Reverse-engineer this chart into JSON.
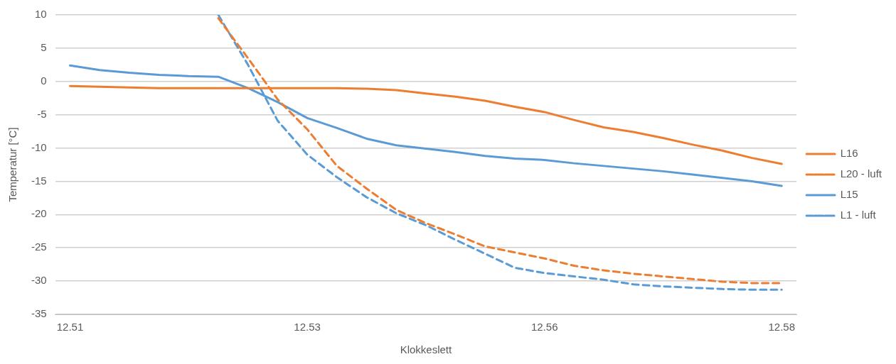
{
  "chart_data": {
    "type": "line",
    "xlabel": "Klokkeslett",
    "ylabel": "Temperatur [°C]",
    "categories": [
      "12.51",
      null,
      null,
      null,
      null,
      null,
      null,
      null,
      "12.53",
      null,
      null,
      null,
      null,
      null,
      null,
      null,
      "12.56",
      null,
      null,
      null,
      null,
      null,
      null,
      null,
      "12.58"
    ],
    "ylim": [
      -35,
      10
    ],
    "yticks": [
      -35,
      -30,
      -25,
      -20,
      -15,
      -10,
      -5,
      0,
      5,
      10
    ],
    "grid": "y",
    "legend": "right",
    "marker": "none",
    "series": [
      {
        "name": "L16",
        "color": "#ed7d31",
        "line_style": "solid",
        "values": [
          -0.7,
          -0.8,
          -0.9,
          -1,
          -1,
          -1,
          -1,
          -1,
          -1,
          -1,
          -1.1,
          -1.3,
          -1.8,
          -2.3,
          -2.9,
          -3.8,
          -4.6,
          -5.8,
          -6.9,
          -7.6,
          -8.5,
          -9.5,
          -10.4,
          -11.5,
          -12.4
        ]
      },
      {
        "name": "L20 - luft",
        "color": "#ed7d31",
        "line_style": "dashed",
        "values": [
          null,
          null,
          null,
          null,
          null,
          9.5,
          3.5,
          -2.7,
          -7.2,
          -12.7,
          -16.1,
          -19.3,
          -21.3,
          -23,
          -24.8,
          -25.7,
          -26.6,
          -27.7,
          -28.4,
          -28.9,
          -29.3,
          -29.7,
          -30.1,
          -30.3,
          -30.3
        ]
      },
      {
        "name": "L15",
        "color": "#5b9bd5",
        "line_style": "solid",
        "values": [
          2.4,
          1.7,
          1.3,
          1,
          0.8,
          0.7,
          -1,
          -3.1,
          -5.5,
          -7,
          -8.6,
          -9.6,
          -10.1,
          -10.6,
          -11.2,
          -11.6,
          -11.8,
          -12.3,
          -12.7,
          -13.1,
          -13.5,
          -14,
          -14.5,
          -15,
          -15.7
        ]
      },
      {
        "name": "L1 - luft",
        "color": "#5b9bd5",
        "line_style": "dashed",
        "values": [
          null,
          null,
          null,
          null,
          null,
          10,
          2.5,
          -5.9,
          -11,
          -14.4,
          -17.4,
          -19.8,
          -21.6,
          -23.8,
          -25.9,
          -28,
          -28.8,
          -29.3,
          -29.8,
          -30.5,
          -30.8,
          -31,
          -31.2,
          -31.3,
          -31.3
        ]
      }
    ]
  }
}
